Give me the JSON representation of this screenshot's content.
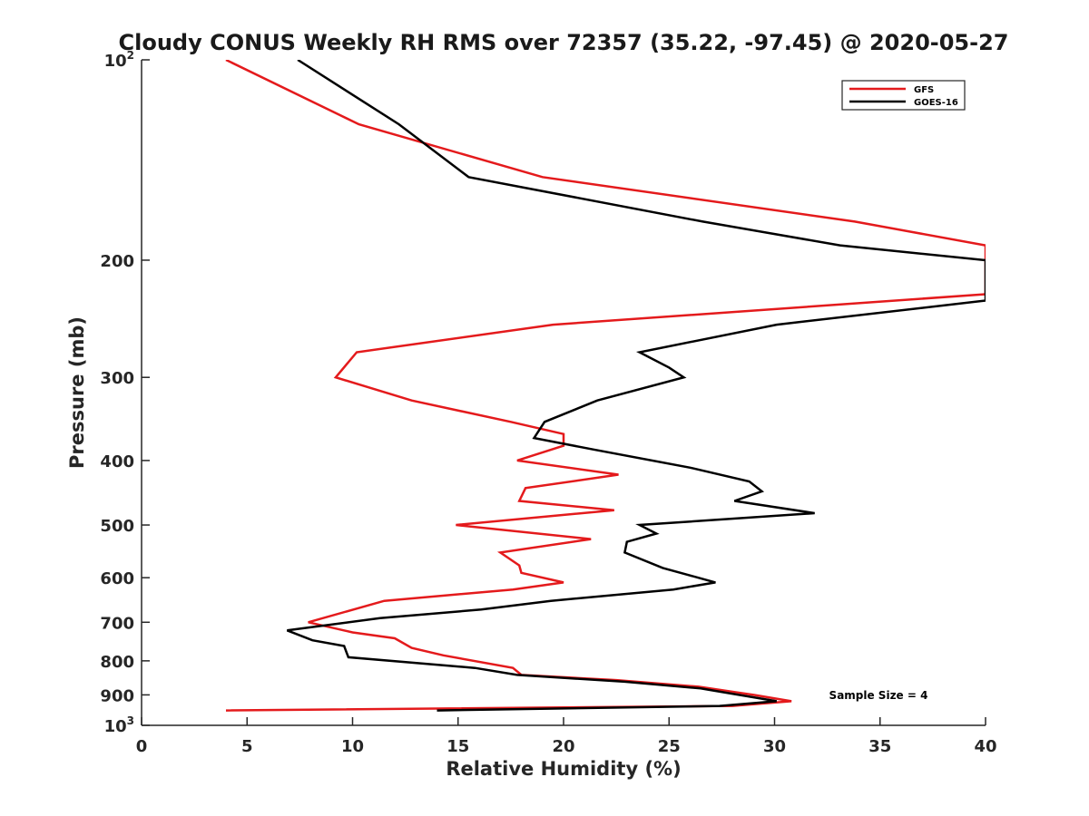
{
  "chart_data": {
    "type": "line",
    "title": "Cloudy CONUS Weekly RH RMS over 72357 (35.22, -97.45) @ 2020-05-27",
    "xlabel": "Relative Humidity (%)",
    "ylabel": "Pressure (mb)",
    "xlim": [
      0,
      40
    ],
    "ylim": [
      100,
      1000
    ],
    "y_scale": "log",
    "y_reversed": true,
    "grid": false,
    "legend_position": "top-right",
    "x_ticks": [
      {
        "value": 0,
        "label": "0"
      },
      {
        "value": 5,
        "label": "5"
      },
      {
        "value": 10,
        "label": "10"
      },
      {
        "value": 15,
        "label": "15"
      },
      {
        "value": 20,
        "label": "20"
      },
      {
        "value": 25,
        "label": "25"
      },
      {
        "value": 30,
        "label": "30"
      },
      {
        "value": 35,
        "label": "35"
      },
      {
        "value": 40,
        "label": "40"
      }
    ],
    "y_ticks": [
      {
        "value": 100,
        "base": "10",
        "exp": "2"
      },
      {
        "value": 200,
        "label": "200"
      },
      {
        "value": 300,
        "label": "300"
      },
      {
        "value": 400,
        "label": "400"
      },
      {
        "value": 500,
        "label": "500"
      },
      {
        "value": 600,
        "label": "600"
      },
      {
        "value": 700,
        "label": "700"
      },
      {
        "value": 800,
        "label": "800"
      },
      {
        "value": 900,
        "label": "900"
      },
      {
        "value": 1000,
        "base": "10",
        "exp": "3"
      }
    ],
    "annotation": "Sample Size = 4",
    "series": [
      {
        "name": "GFS",
        "color": "#e41a1c",
        "points": [
          [
            4.0,
            100
          ],
          [
            10.3,
            125
          ],
          [
            19.0,
            150
          ],
          [
            33.8,
            175
          ],
          [
            40.0,
            190
          ],
          [
            40.0,
            225
          ],
          [
            19.5,
            250
          ],
          [
            10.2,
            275
          ],
          [
            9.2,
            300
          ],
          [
            12.8,
            325
          ],
          [
            17.5,
            350
          ],
          [
            20.0,
            365
          ],
          [
            20.0,
            380
          ],
          [
            17.8,
            400
          ],
          [
            22.6,
            420
          ],
          [
            18.2,
            440
          ],
          [
            17.9,
            460
          ],
          [
            22.4,
            475
          ],
          [
            14.9,
            500
          ],
          [
            21.3,
            525
          ],
          [
            17.0,
            550
          ],
          [
            17.9,
            575
          ],
          [
            18.0,
            590
          ],
          [
            20.0,
            610
          ],
          [
            17.6,
            625
          ],
          [
            11.5,
            650
          ],
          [
            7.9,
            700
          ],
          [
            10.0,
            725
          ],
          [
            12.0,
            740
          ],
          [
            12.8,
            765
          ],
          [
            14.3,
            785
          ],
          [
            17.6,
            820
          ],
          [
            18.0,
            840
          ],
          [
            22.5,
            855
          ],
          [
            26.4,
            875
          ],
          [
            29.0,
            900
          ],
          [
            30.8,
            920
          ],
          [
            28.0,
            935
          ],
          [
            4.0,
            950
          ]
        ]
      },
      {
        "name": "GOES-16",
        "color": "#000000",
        "points": [
          [
            7.4,
            100
          ],
          [
            12.2,
            125
          ],
          [
            15.5,
            150
          ],
          [
            26.6,
            175
          ],
          [
            33.1,
            190
          ],
          [
            40.0,
            200
          ],
          [
            40.0,
            230
          ],
          [
            30.1,
            250
          ],
          [
            23.6,
            275
          ],
          [
            25.0,
            290
          ],
          [
            25.7,
            300
          ],
          [
            21.6,
            325
          ],
          [
            19.1,
            350
          ],
          [
            18.6,
            370
          ],
          [
            21.4,
            385
          ],
          [
            26.0,
            410
          ],
          [
            28.8,
            430
          ],
          [
            29.4,
            445
          ],
          [
            28.1,
            460
          ],
          [
            31.9,
            480
          ],
          [
            23.6,
            500
          ],
          [
            24.4,
            515
          ],
          [
            23.0,
            530
          ],
          [
            22.9,
            550
          ],
          [
            24.7,
            580
          ],
          [
            27.2,
            610
          ],
          [
            25.2,
            625
          ],
          [
            19.4,
            650
          ],
          [
            16.1,
            670
          ],
          [
            11.3,
            690
          ],
          [
            6.9,
            720
          ],
          [
            8.1,
            745
          ],
          [
            9.6,
            760
          ],
          [
            9.7,
            775
          ],
          [
            9.8,
            790
          ],
          [
            15.8,
            820
          ],
          [
            17.8,
            840
          ],
          [
            22.9,
            860
          ],
          [
            26.5,
            880
          ],
          [
            30.1,
            920
          ],
          [
            27.4,
            935
          ],
          [
            14.0,
            950
          ]
        ]
      }
    ]
  }
}
